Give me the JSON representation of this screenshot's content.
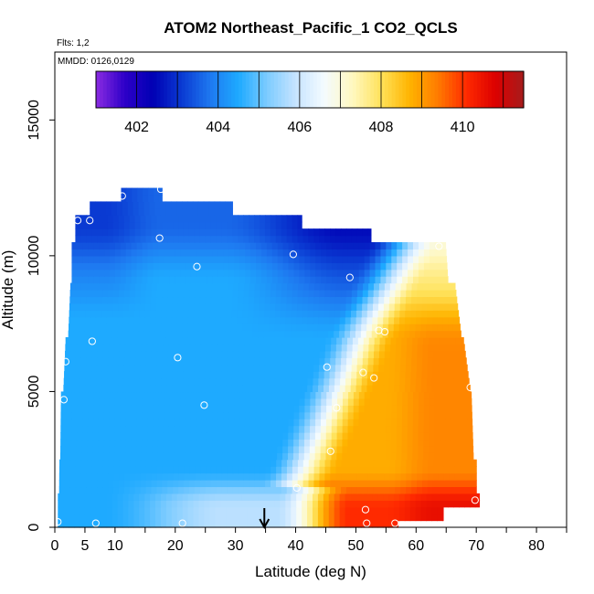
{
  "chart_data": {
    "type": "heatmap",
    "title": "ATOM2 Northeast_Pacific_1 CO2_QCLS",
    "flights_label": "Flts: 1,2",
    "mmdd_label": "MMDD: 0126,0129",
    "xlabel": "Latitude (deg N)",
    "ylabel": "Altitude (m)",
    "xlim": [
      0,
      85
    ],
    "ylim": [
      0,
      17500
    ],
    "x_tick_labels": [
      "0",
      "5",
      "10",
      "20",
      "30",
      "40",
      "50",
      "60",
      "70",
      "80"
    ],
    "x_tick_values": [
      0,
      5,
      10,
      20,
      30,
      40,
      50,
      60,
      70,
      80
    ],
    "x_minor_ticks": [
      15,
      25,
      35,
      45,
      55,
      65,
      75,
      85
    ],
    "y_tick_labels": [
      "0",
      "5000",
      "10000",
      "15000"
    ],
    "y_tick_values": [
      0,
      5000,
      10000,
      15000
    ],
    "colorbar": {
      "min": 401,
      "max": 411.5,
      "tick_labels": [
        "402",
        "404",
        "406",
        "408",
        "410"
      ],
      "tick_values": [
        402,
        404,
        406,
        408,
        410
      ],
      "colors": [
        "#8B2BE2",
        "#2E00C8",
        "#0000B4",
        "#0A3AD2",
        "#1E78F0",
        "#1EAAFF",
        "#7CCBFF",
        "#C6E4FF",
        "#F4FBFF",
        "#FFF8C0",
        "#FFE25A",
        "#FFB400",
        "#FF7A00",
        "#FF2A00",
        "#DC0000",
        "#A61C1C"
      ]
    },
    "marker": {
      "latitude": 34.8,
      "label": "arrow"
    },
    "observations": [
      {
        "lat": 0.5,
        "alt": 200
      },
      {
        "lat": 6.8,
        "alt": 150
      },
      {
        "lat": 21.2,
        "alt": 150
      },
      {
        "lat": 51.8,
        "alt": 150
      },
      {
        "lat": 56.5,
        "alt": 150
      },
      {
        "lat": 51.6,
        "alt": 650
      },
      {
        "lat": 69.8,
        "alt": 1000
      },
      {
        "lat": 40.2,
        "alt": 1450
      },
      {
        "lat": 45.8,
        "alt": 2800
      },
      {
        "lat": 24.8,
        "alt": 4500
      },
      {
        "lat": 46.8,
        "alt": 4400
      },
      {
        "lat": 1.5,
        "alt": 4700
      },
      {
        "lat": 69.0,
        "alt": 5150
      },
      {
        "lat": 53.0,
        "alt": 5500
      },
      {
        "lat": 51.2,
        "alt": 5700
      },
      {
        "lat": 45.2,
        "alt": 5900
      },
      {
        "lat": 1.8,
        "alt": 6100
      },
      {
        "lat": 20.4,
        "alt": 6250
      },
      {
        "lat": 6.2,
        "alt": 6850
      },
      {
        "lat": 53.8,
        "alt": 7250
      },
      {
        "lat": 54.8,
        "alt": 7200
      },
      {
        "lat": 49.0,
        "alt": 9200
      },
      {
        "lat": 23.6,
        "alt": 9600
      },
      {
        "lat": 39.6,
        "alt": 10050
      },
      {
        "lat": 63.8,
        "alt": 10350
      },
      {
        "lat": 17.4,
        "alt": 10650
      },
      {
        "lat": 3.8,
        "alt": 11300
      },
      {
        "lat": 5.8,
        "alt": 11300
      },
      {
        "lat": 11.2,
        "alt": 12200
      },
      {
        "lat": 17.6,
        "alt": 12450
      }
    ]
  }
}
